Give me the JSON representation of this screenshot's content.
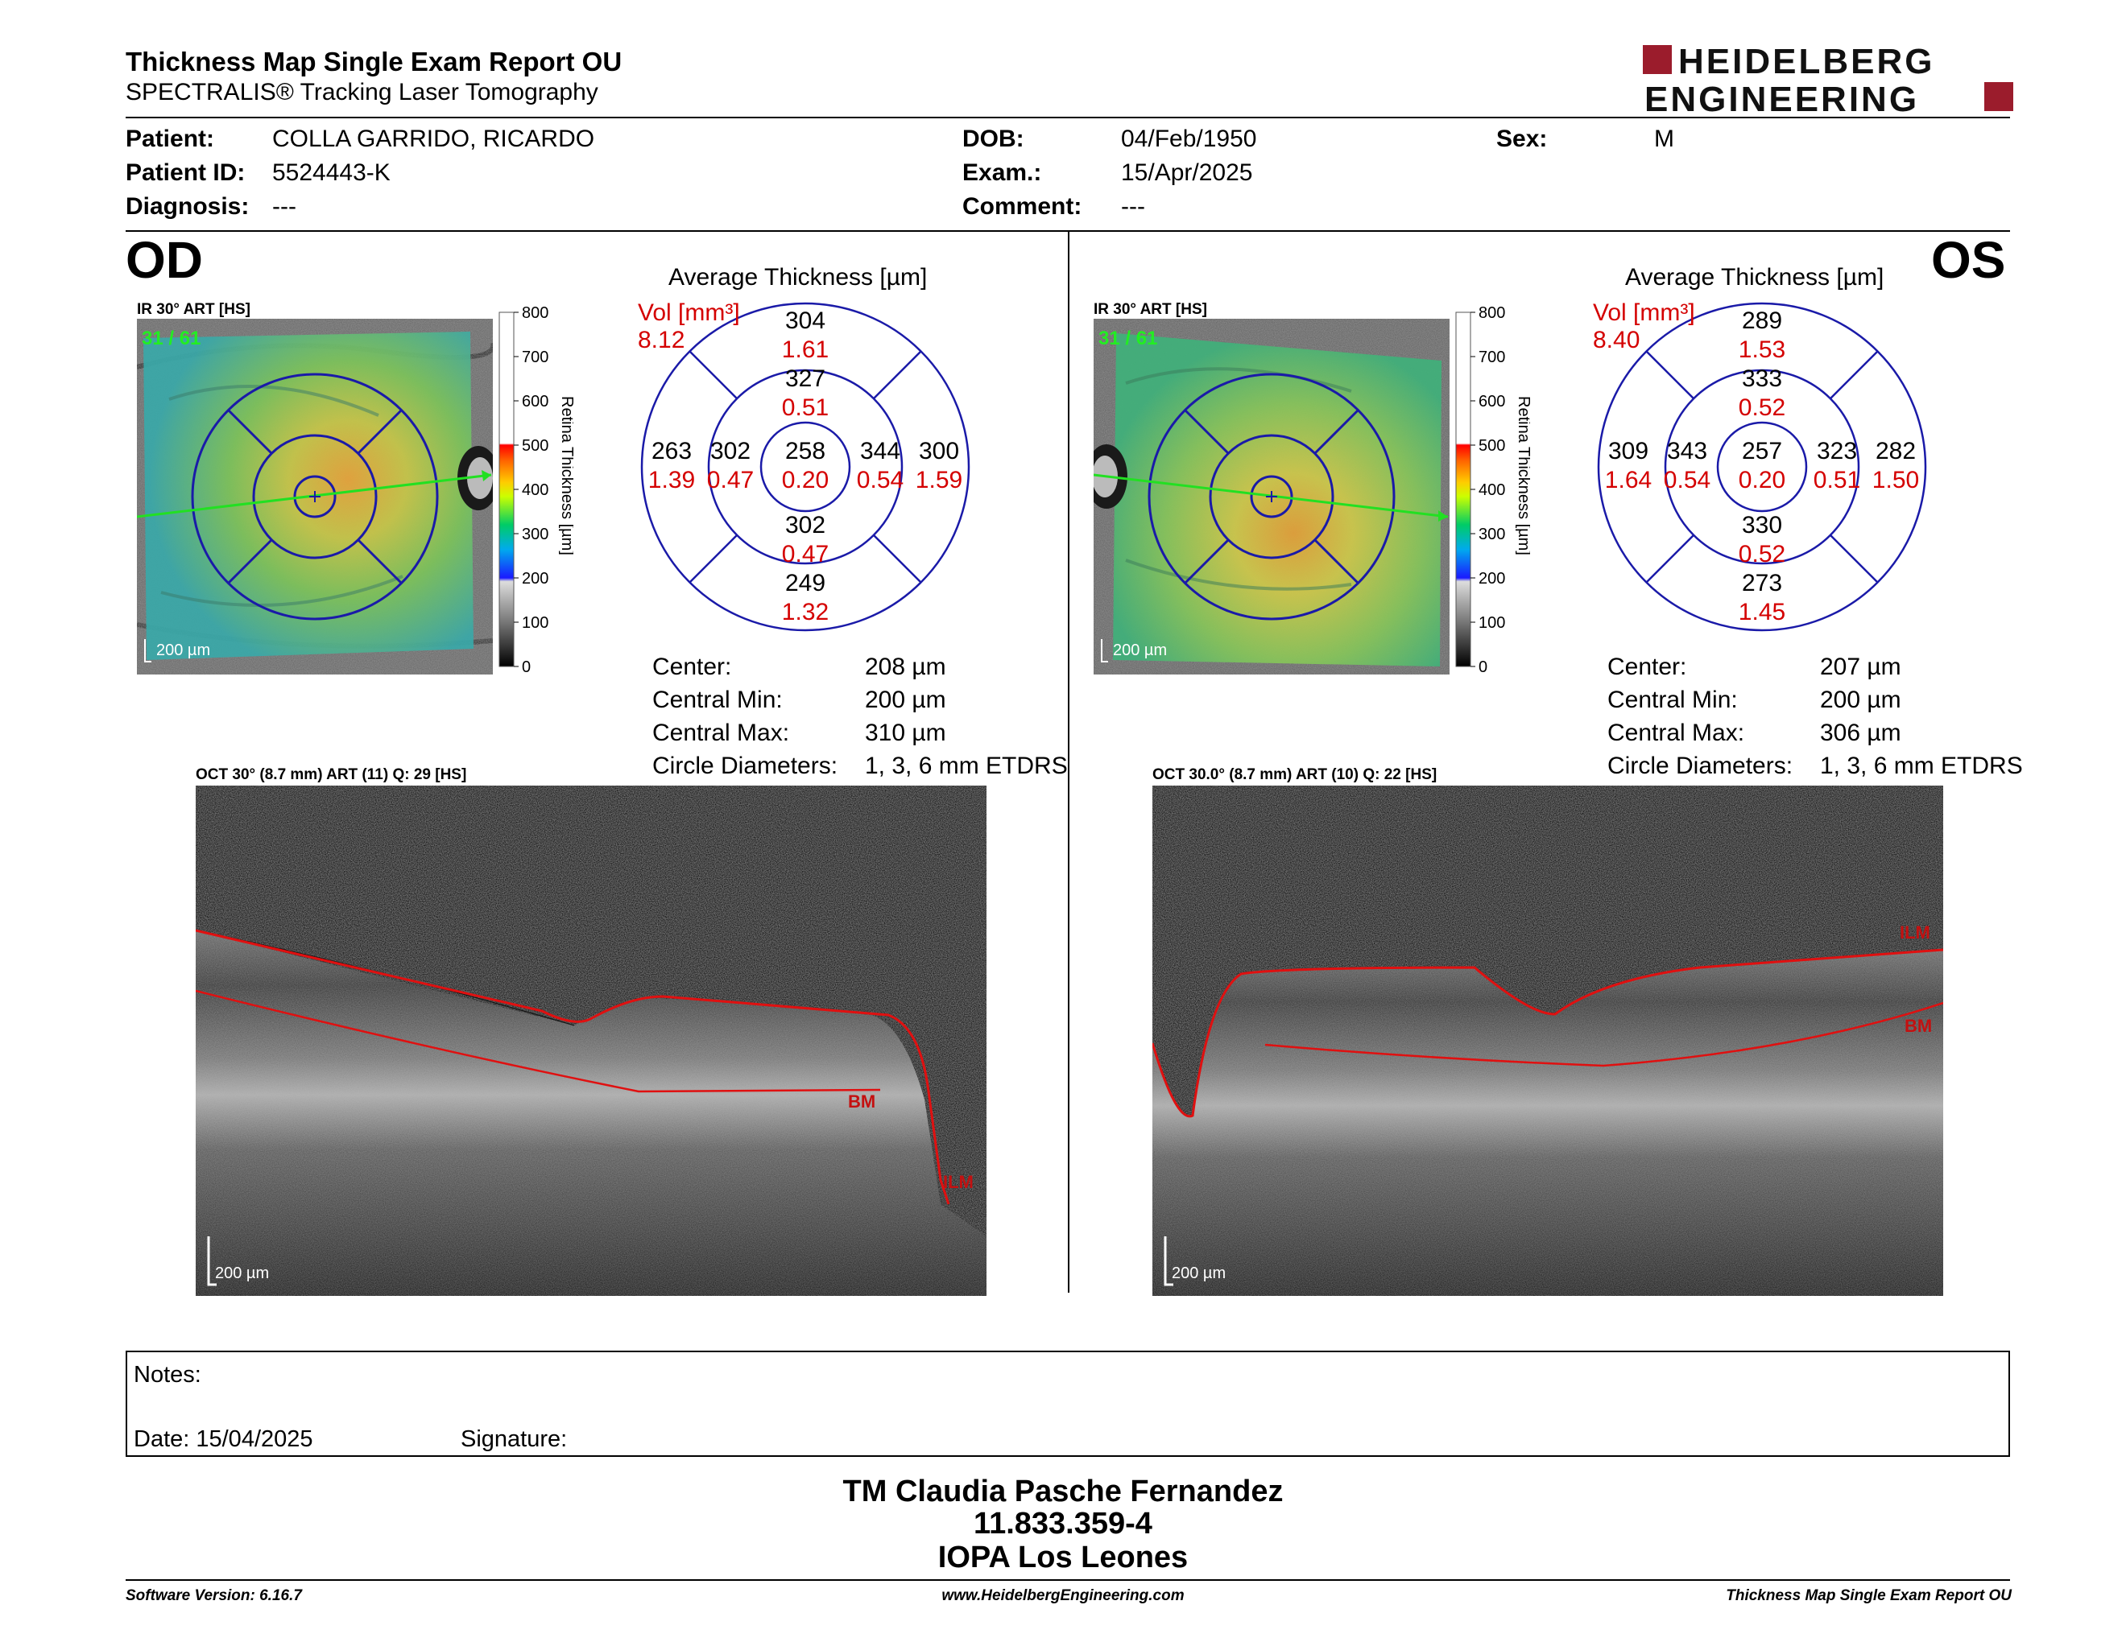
{
  "header": {
    "title": "Thickness Map Single Exam Report OU",
    "subtitle": "SPECTRALIS® Tracking Laser Tomography",
    "logo_line1": "HEIDELBERG",
    "logo_line2": "ENGINEERING"
  },
  "patient": {
    "patient_label": "Patient:",
    "patient": "COLLA GARRIDO, RICARDO",
    "id_label": "Patient ID:",
    "id": "5524443-K",
    "diagnosis_label": "Diagnosis:",
    "diagnosis": "---",
    "dob_label": "DOB:",
    "dob": "04/Feb/1950",
    "exam_label": "Exam.:",
    "exam": "15/Apr/2025",
    "comment_label": "Comment:",
    "comment": "---",
    "sex_label": "Sex:",
    "sex": "M"
  },
  "colorbar": {
    "title": "Retina Thickness [µm]",
    "ticks": [
      "800",
      "700",
      "600",
      "500",
      "400",
      "300",
      "200",
      "100",
      "0"
    ]
  },
  "od": {
    "eye": "OD",
    "ir_label": "IR 30° ART [HS]",
    "frame": "31 / 61",
    "scale": "200 µm",
    "avg_title": "Average Thickness [µm]",
    "vol_label": "Vol [mm³]",
    "vol": "8.12",
    "sectors": {
      "center": {
        "t": "258",
        "v": "0.20"
      },
      "inner_sup": {
        "t": "327",
        "v": "0.51"
      },
      "inner_inf": {
        "t": "302",
        "v": "0.47"
      },
      "inner_left": {
        "t": "302",
        "v": "0.47"
      },
      "inner_right": {
        "t": "344",
        "v": "0.54"
      },
      "outer_sup": {
        "t": "304",
        "v": "1.61"
      },
      "outer_inf": {
        "t": "249",
        "v": "1.32"
      },
      "outer_left": {
        "t": "263",
        "v": "1.39"
      },
      "outer_right": {
        "t": "300",
        "v": "1.59"
      }
    },
    "stats": [
      {
        "label": "Center:",
        "value": "208 µm"
      },
      {
        "label": "Central Min:",
        "value": "200 µm"
      },
      {
        "label": "Central Max:",
        "value": "310 µm"
      },
      {
        "label": "Circle Diameters:",
        "value": "1, 3, 6 mm ETDRS"
      }
    ],
    "oct_label": "OCT 30° (8.7 mm) ART (11) Q: 29 [HS]",
    "oct_scale": "200 µm",
    "ilm": "ILM",
    "bm": "BM"
  },
  "os": {
    "eye": "OS",
    "ir_label": "IR 30° ART [HS]",
    "frame": "31 / 61",
    "scale": "200 µm",
    "avg_title": "Average Thickness [µm]",
    "vol_label": "Vol [mm³]",
    "vol": "8.40",
    "sectors": {
      "center": {
        "t": "257",
        "v": "0.20"
      },
      "inner_sup": {
        "t": "333",
        "v": "0.52"
      },
      "inner_inf": {
        "t": "330",
        "v": "0.52"
      },
      "inner_left": {
        "t": "343",
        "v": "0.54"
      },
      "inner_right": {
        "t": "323",
        "v": "0.51"
      },
      "outer_sup": {
        "t": "289",
        "v": "1.53"
      },
      "outer_inf": {
        "t": "273",
        "v": "1.45"
      },
      "outer_left": {
        "t": "309",
        "v": "1.64"
      },
      "outer_right": {
        "t": "282",
        "v": "1.50"
      }
    },
    "stats": [
      {
        "label": "Center:",
        "value": "207 µm"
      },
      {
        "label": "Central Min:",
        "value": "200 µm"
      },
      {
        "label": "Central Max:",
        "value": "306 µm"
      },
      {
        "label": "Circle Diameters:",
        "value": "1, 3, 6 mm ETDRS"
      }
    ],
    "oct_label": "OCT 30.0° (8.7 mm) ART (10) Q: 22 [HS]",
    "oct_scale": "200 µm",
    "ilm": "ILM",
    "bm": "BM"
  },
  "notes": {
    "notes_label": "Notes:",
    "date_label": "Date: 15/04/2025",
    "signature_label": "Signature:"
  },
  "signature_block": {
    "line1": "TM Claudia Pasche Fernandez",
    "line2": "11.833.359-4",
    "line3": "IOPA Los Leones"
  },
  "footer": {
    "left": "Software Version: 6.16.7",
    "center": "www.HeidelbergEngineering.com",
    "right": "Thickness Map Single Exam Report OU"
  },
  "colors": {
    "red": "#d40000",
    "blue": "#1a1aa8",
    "logo_red": "#9b1c2c"
  }
}
